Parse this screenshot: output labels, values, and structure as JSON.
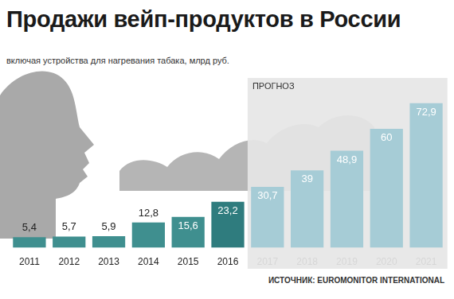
{
  "chart_data": {
    "type": "bar",
    "title": "Продажи вейп-продуктов в России",
    "subtitle": "включая устройства для нагревания табака, млрд руб.",
    "annotation": "ПРОГНОЗ",
    "source": "ИСТОЧНИК: EUROMONITOR INTERNATIONAL",
    "categories": [
      "2011",
      "2012",
      "2013",
      "2014",
      "2015",
      "2016",
      "2017",
      "2018",
      "2019",
      "2020",
      "2021"
    ],
    "values": [
      5.4,
      5.7,
      5.9,
      12.8,
      15.6,
      23.2,
      30.7,
      39,
      48.9,
      60,
      72.9
    ],
    "value_labels": [
      "5,4",
      "5,7",
      "5,9",
      "12,8",
      "15,6",
      "23,2",
      "30,7",
      "39",
      "48,9",
      "60",
      "72,9"
    ],
    "colors": [
      "#3f8f8f",
      "#3f8f8f",
      "#3f8f8f",
      "#3f8f8f",
      "#3f8f8f",
      "#2f7c7e",
      "#a6ccd6",
      "#a6ccd6",
      "#a6ccd6",
      "#a6ccd6",
      "#a6ccd6"
    ],
    "data_labels": true,
    "tick_labels": "x",
    "grid": false
  }
}
